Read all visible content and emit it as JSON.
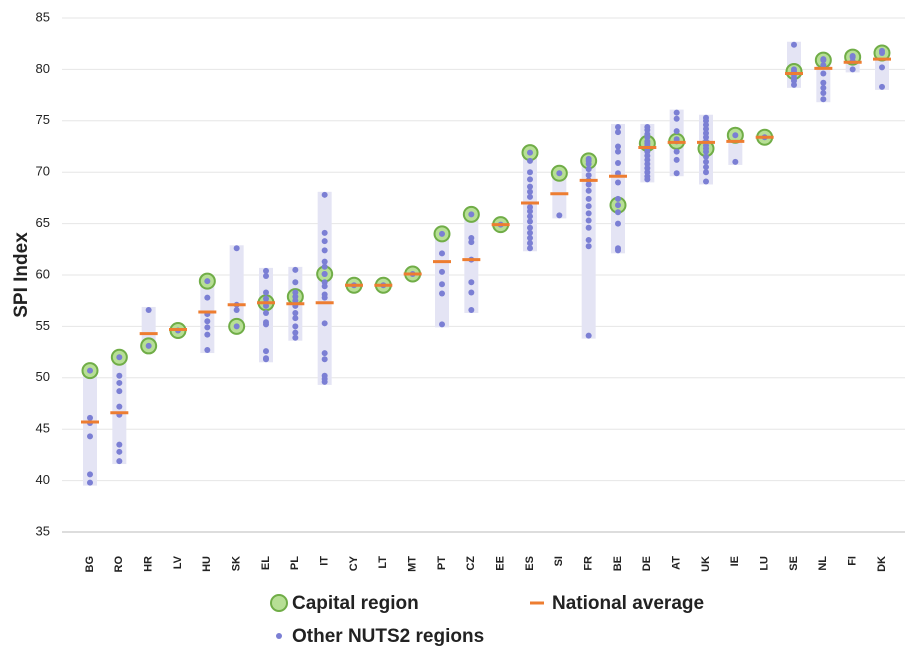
{
  "chart_data": {
    "type": "dot",
    "y_label": "SPI Index",
    "categories": [
      "BG",
      "RO",
      "HR",
      "LV",
      "HU",
      "SK",
      "EL",
      "PL",
      "IT",
      "CY",
      "LT",
      "MT",
      "PT",
      "CZ",
      "EE",
      "ES",
      "SI",
      "FR",
      "BE",
      "DE",
      "AT",
      "UK",
      "IE",
      "LU",
      "SE",
      "NL",
      "FI",
      "DK"
    ],
    "ylim": [
      35,
      85
    ],
    "yticks": [
      35,
      40,
      45,
      50,
      55,
      60,
      65,
      70,
      75,
      80,
      85
    ],
    "grid": true,
    "series": [
      {
        "name": "Capital region",
        "color": "#70ad47",
        "values": [
          50.7,
          52,
          53.1,
          54.6,
          59.4,
          55,
          57.3,
          57.9,
          60.1,
          59,
          59,
          60.1,
          64,
          65.9,
          64.9,
          71.9,
          69.9,
          71.1,
          66.8,
          72.8,
          73,
          72.3,
          73.6,
          73.4,
          79.8,
          80.9,
          81.2,
          81.6
        ]
      },
      {
        "name": "National average",
        "color": "#ed7d31",
        "values": [
          45.7,
          46.6,
          54.3,
          54.7,
          56.4,
          57.1,
          57.3,
          57.2,
          57.3,
          59,
          59,
          60.1,
          61.3,
          61.5,
          64.9,
          67,
          67.9,
          69.2,
          69.6,
          72.4,
          72.9,
          72.9,
          73,
          73.4,
          79.6,
          80.1,
          80.7,
          81
        ]
      },
      {
        "name": "Other NUTS2 regions",
        "color": "#7b7fd4",
        "values": [
          [
            46.1,
            45.6,
            44.3,
            40.6,
            39.8
          ],
          [
            50.2,
            49.5,
            48.7,
            47.2,
            46.4,
            43.5,
            42.8,
            41.9
          ],
          [
            56.6
          ],
          [],
          [
            57.8,
            56.2,
            55.5,
            54.9,
            54.2,
            52.7
          ],
          [
            62.6,
            57.1,
            56.6
          ],
          [
            60.4,
            59.9,
            58.3,
            57.7,
            57.0,
            56.3,
            55.4,
            55.2,
            52.6,
            51.9,
            51.8
          ],
          [
            60.5,
            59.3,
            58.3,
            57.5,
            57.0,
            56.3,
            55.8,
            55.0,
            54.4,
            53.9
          ],
          [
            67.8,
            64.1,
            63.3,
            62.4,
            61.3,
            60.8,
            60.1,
            59.3,
            58.9,
            58.1,
            57.8,
            55.3,
            52.4,
            51.8,
            50.2,
            49.9,
            49.6
          ],
          [],
          [],
          [],
          [
            62.1,
            60.3,
            59.1,
            58.2,
            55.2
          ],
          [
            63.6,
            63.2,
            61.5,
            59.3,
            58.3,
            56.6
          ],
          [],
          [
            71.1,
            70.0,
            69.3,
            68.6,
            68.1,
            67.6,
            66.6,
            66.2,
            65.7,
            65.2,
            64.6,
            64.1,
            63.6,
            63.1,
            62.6
          ],
          [
            65.8
          ],
          [
            71.3,
            70.8,
            70.3,
            69.7,
            69.2,
            68.8,
            68.2,
            67.4,
            66.7,
            66.0,
            65.3,
            64.6,
            63.4,
            62.8,
            54.1
          ],
          [
            74.4,
            73.9,
            72.5,
            72.0,
            70.9,
            69.9,
            69.0,
            67.4,
            66.1,
            65.0,
            62.6,
            62.4
          ],
          [
            74.4,
            74.1,
            73.7,
            73.4,
            73.0,
            72.6,
            72.3,
            72.0,
            71.6,
            71.2,
            70.8,
            70.4,
            70.0,
            69.6,
            69.3
          ],
          [
            75.8,
            75.2,
            74.0,
            73.2,
            72.0,
            71.2,
            69.9
          ],
          [
            75.3,
            75.0,
            74.6,
            74.2,
            73.8,
            73.4,
            73.0,
            72.6,
            72.0,
            71.5,
            71.0,
            70.5,
            70.0,
            69.1
          ],
          [
            71.0
          ],
          [],
          [
            82.4,
            80.0,
            79.5,
            79.2,
            78.9,
            78.5
          ],
          [
            81.0,
            80.4,
            79.6,
            78.7,
            78.2,
            77.7,
            77.1
          ],
          [
            81.3,
            80.8,
            80.0
          ],
          [
            81.8,
            80.2,
            78.3
          ]
        ]
      }
    ]
  }
}
